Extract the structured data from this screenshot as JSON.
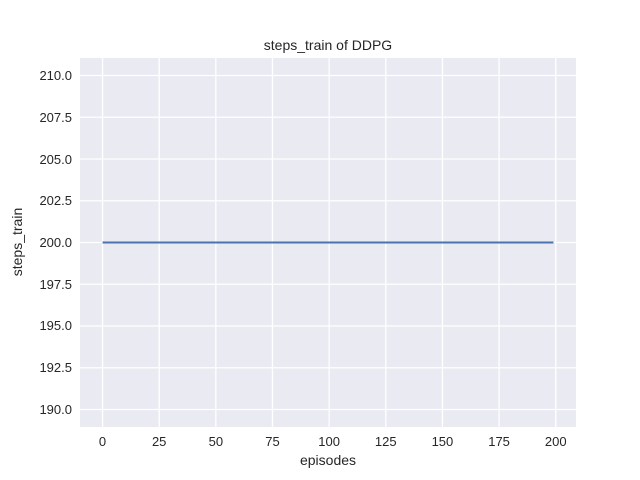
{
  "colors": {
    "figure_background": "#FFFFFF",
    "plot_background": "#EAEAF2",
    "gridline": "#FFFFFF",
    "line": "#4C72B0",
    "text": "#262626"
  },
  "chart_data": {
    "type": "line",
    "title": "steps_train of DDPG",
    "xlabel": "episodes",
    "ylabel": "steps_train",
    "xlim": [
      -9.95,
      208.95
    ],
    "ylim": [
      188.95,
      211.05
    ],
    "xticks": [
      0,
      25,
      50,
      75,
      100,
      125,
      150,
      175,
      200
    ],
    "xtick_labels": [
      "0",
      "25",
      "50",
      "75",
      "100",
      "125",
      "150",
      "175",
      "200"
    ],
    "yticks": [
      190.0,
      192.5,
      195.0,
      197.5,
      200.0,
      202.5,
      205.0,
      207.5,
      210.0
    ],
    "ytick_labels": [
      "190.0",
      "192.5",
      "195.0",
      "197.5",
      "200.0",
      "202.5",
      "205.0",
      "207.5",
      "210.0"
    ],
    "grid": true,
    "legend_position": "none",
    "series": [
      {
        "name": "steps_train",
        "color": "#4C72B0",
        "constant_value": 200,
        "x": [
          0,
          199
        ],
        "y": [
          200,
          200
        ]
      }
    ]
  }
}
